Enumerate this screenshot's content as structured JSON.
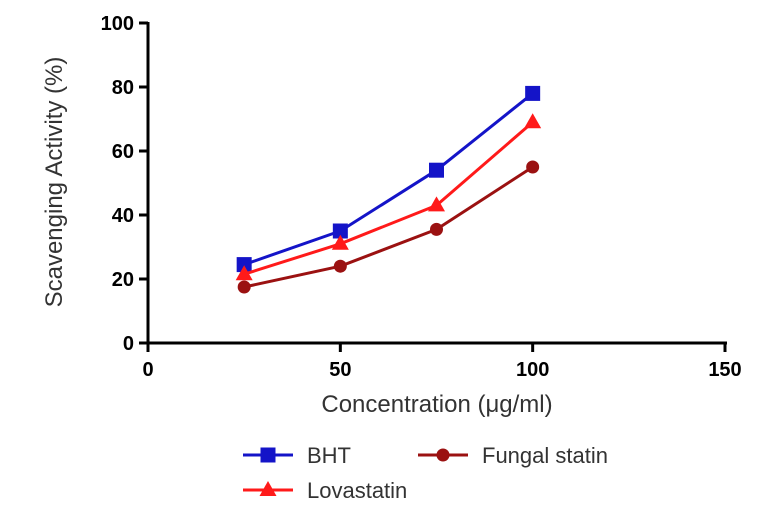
{
  "chart_data": {
    "type": "line",
    "xlabel": "Concentration (μg/ml)",
    "ylabel": "Scavenging Activity (%)",
    "xlim": [
      0,
      150
    ],
    "ylim": [
      0,
      100
    ],
    "xticks": [
      "0",
      "50",
      "100",
      "150"
    ],
    "yticks": [
      "0",
      "20",
      "40",
      "60",
      "80",
      "100"
    ],
    "x": [
      25,
      50,
      75,
      100
    ],
    "grid": false,
    "legend_position": "bottom",
    "series": [
      {
        "name": "BHT",
        "values": [
          24.5,
          35,
          54,
          78
        ],
        "color": "#1414c8",
        "marker": "square"
      },
      {
        "name": "Lovastatin",
        "values": [
          21.5,
          31,
          43,
          69
        ],
        "color": "#ff1a1a",
        "marker": "triangle"
      },
      {
        "name": "Fungal statin",
        "values": [
          17.5,
          24,
          35.5,
          55
        ],
        "color": "#9b1111",
        "marker": "circle"
      }
    ]
  }
}
